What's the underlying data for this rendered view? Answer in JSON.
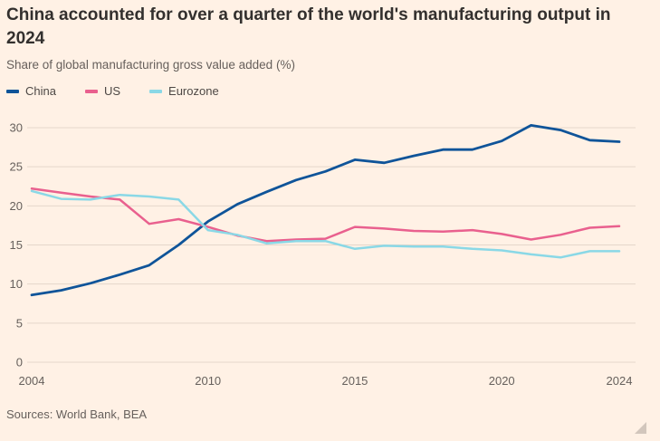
{
  "page": {
    "background": "#FFF1E5",
    "source": "Sources: World Bank, BEA"
  },
  "chart_data": {
    "type": "line",
    "title": "China accounted for over a quarter of the world's manufacturing output in 2024",
    "subtitle": "Share of global manufacturing gross value added (%)",
    "x": [
      2004,
      2005,
      2006,
      2007,
      2008,
      2009,
      2010,
      2011,
      2012,
      2013,
      2014,
      2015,
      2016,
      2017,
      2018,
      2019,
      2020,
      2021,
      2022,
      2023,
      2024
    ],
    "series": [
      {
        "name": "China",
        "color": "#0F5499",
        "stroke_width": 2.8,
        "values": [
          8.6,
          9.2,
          10.1,
          11.2,
          12.4,
          15.0,
          18.0,
          20.2,
          21.8,
          23.3,
          24.4,
          25.9,
          25.5,
          26.4,
          27.2,
          27.2,
          28.3,
          30.3,
          29.7,
          28.4,
          28.2
        ]
      },
      {
        "name": "US",
        "color": "#E9608E",
        "stroke_width": 2.5,
        "values": [
          22.2,
          21.7,
          21.2,
          20.8,
          17.7,
          18.3,
          17.3,
          16.2,
          15.5,
          15.7,
          15.8,
          17.3,
          17.1,
          16.8,
          16.7,
          16.9,
          16.4,
          15.7,
          16.3,
          17.2,
          17.4
        ]
      },
      {
        "name": "Eurozone",
        "color": "#8AD8E6",
        "stroke_width": 2.5,
        "values": [
          21.9,
          20.9,
          20.8,
          21.4,
          21.2,
          20.8,
          16.9,
          16.3,
          15.2,
          15.5,
          15.5,
          14.5,
          14.9,
          14.8,
          14.8,
          14.5,
          14.3,
          13.8,
          13.4,
          14.2,
          14.2
        ]
      }
    ],
    "ylim": [
      0,
      30
    ],
    "yticks": [
      0,
      5,
      10,
      15,
      20,
      25,
      30
    ],
    "xticks": [
      2004,
      2010,
      2015,
      2020,
      2024
    ],
    "grid": "horizontal",
    "legend_position": "top-left",
    "grid_color": "#E5D6CA",
    "axis_text_color": "#66605C"
  }
}
